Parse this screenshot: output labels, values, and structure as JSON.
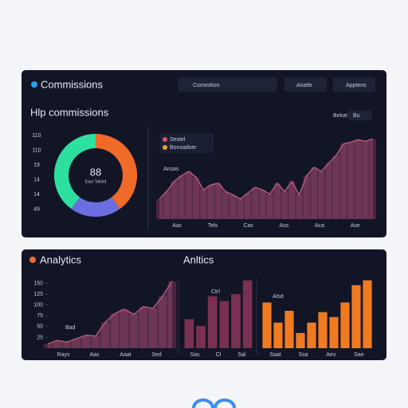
{
  "header": {
    "title": "Commissions",
    "dropdown": "Commition",
    "buttons": [
      "Anatle",
      "Apptens"
    ]
  },
  "section": {
    "title": "Analytics"
  },
  "chart_data": [
    {
      "type": "donut",
      "title": "Hlp commissions",
      "center_label": "88",
      "center_sublabel": "Eaur Tatsed",
      "side_labels": [
        "110",
        "110",
        "19",
        "14",
        "14",
        "49"
      ],
      "values": [
        40,
        20,
        40
      ],
      "colors": [
        "#f06a2a",
        "#6a6ee0",
        "#2ee0a0"
      ]
    },
    {
      "type": "area",
      "control": "Bekat",
      "select": "Bu",
      "legend": [
        {
          "name": "Sestel",
          "color": "#e0506a"
        },
        {
          "name": "Bonsadser",
          "color": "#e8a030"
        }
      ],
      "annotation": "Ansas",
      "values": [
        24,
        33,
        45,
        52,
        57,
        50,
        35,
        41,
        43,
        33,
        29,
        24,
        31,
        38,
        35,
        30,
        43,
        33,
        45,
        29,
        52,
        62,
        57,
        67,
        76,
        90,
        92,
        95,
        93,
        96
      ],
      "ylim": [
        0,
        100
      ],
      "x_labels": [
        "Aac",
        "Tels",
        "Cas",
        "Ass",
        "Aca",
        "Ase"
      ],
      "color": "#b05a7a"
    },
    {
      "type": "area",
      "annotation": "Bad",
      "values": [
        10,
        18,
        14,
        22,
        30,
        28,
        60,
        80,
        90,
        78,
        96,
        92,
        120,
        155
      ],
      "ylim": [
        0,
        160
      ],
      "yticks": [
        25,
        50,
        75,
        100,
        125,
        150
      ],
      "x_labels": [
        "Rays",
        "Aas",
        "Aaat",
        "Sed"
      ],
      "color": "#b05a7a"
    },
    {
      "type": "bar",
      "title": "Anltics",
      "annotation": "Ctrl",
      "values": [
        42,
        32,
        75,
        68,
        78,
        98
      ],
      "ylim": [
        0,
        100
      ],
      "x_labels": [
        "Sas",
        "Cl",
        "Sal"
      ],
      "color": "#7a3050"
    },
    {
      "type": "bar",
      "annotation": "Alsd",
      "values": [
        66,
        37,
        54,
        22,
        37,
        52,
        45,
        66,
        91,
        98
      ],
      "ylim": [
        0,
        100
      ],
      "x_labels": [
        "Saat",
        "Ssa",
        "Aeo",
        "Sae"
      ],
      "color": "#f07a20"
    }
  ]
}
